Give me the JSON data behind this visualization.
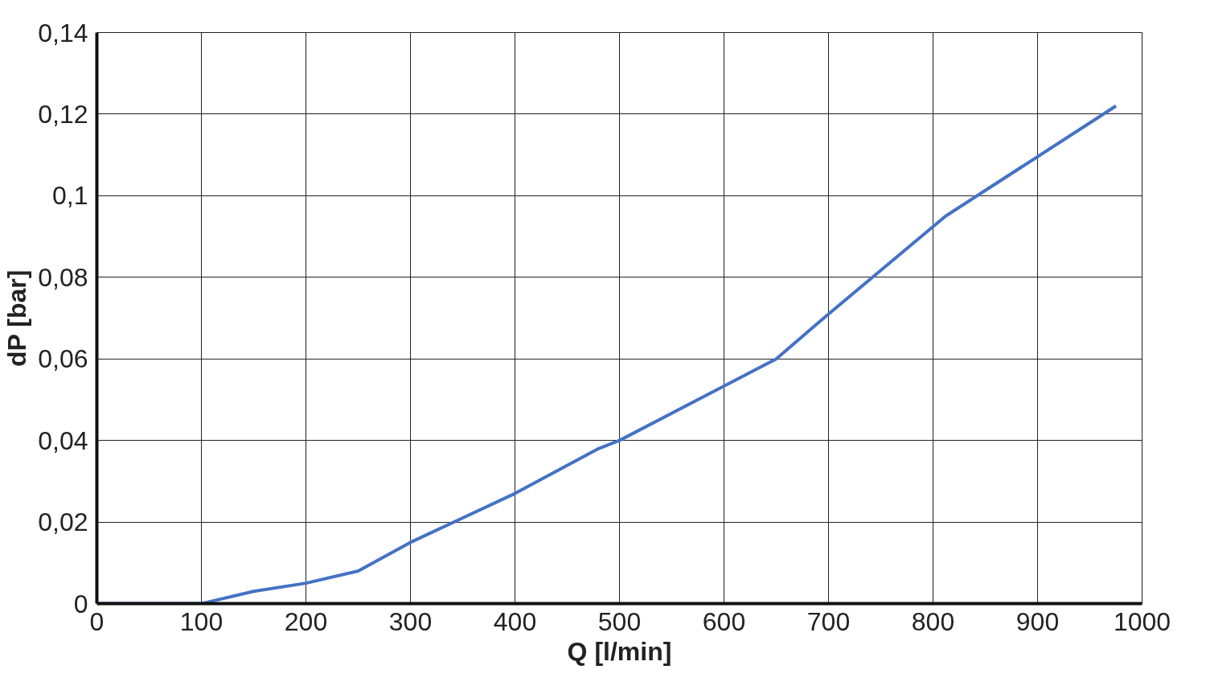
{
  "chart_data": {
    "type": "line",
    "xlabel": "Q [l/min]",
    "ylabel": "dP [bar]",
    "x": [
      0,
      100,
      150,
      200,
      250,
      300,
      350,
      400,
      480,
      500,
      650,
      700,
      812,
      975
    ],
    "series": [
      {
        "color": "#4472c4",
        "values": [
          0,
          0,
          0.003,
          0.005,
          0.008,
          0.015,
          0.021,
          0.027,
          0.038,
          0.04,
          0.06,
          0.071,
          0.095,
          0.122
        ]
      }
    ],
    "xlim": [
      0,
      1000
    ],
    "xticks": [
      0,
      100,
      200,
      300,
      400,
      500,
      600,
      700,
      800,
      900,
      1000
    ],
    "ylim": [
      0,
      0.14
    ],
    "yticks": [
      {
        "value": 0,
        "label": "0"
      },
      {
        "value": 0.02,
        "label": "0,02"
      },
      {
        "value": 0.04,
        "label": "0,04"
      },
      {
        "value": 0.06,
        "label": "0,06"
      },
      {
        "value": 0.08,
        "label": "0,08"
      },
      {
        "value": 0.1,
        "label": "0,1"
      },
      {
        "value": 0.12,
        "label": "0,12"
      },
      {
        "value": 0.14,
        "label": "0,14"
      }
    ],
    "grid": true,
    "marker": "none",
    "line_style": "solid"
  }
}
